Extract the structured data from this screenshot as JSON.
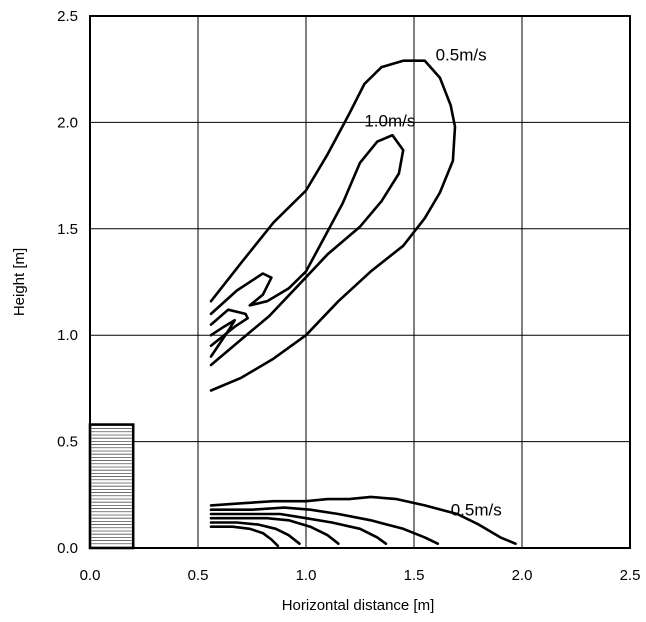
{
  "chart_data": {
    "type": "line",
    "title": "",
    "xlabel": "Horizontal distance [m]",
    "ylabel": "Height [m]",
    "xlim": [
      0.0,
      2.5
    ],
    "ylim": [
      0.0,
      2.5
    ],
    "xticks": [
      "0.0",
      "0.5",
      "1.0",
      "1.5",
      "2.0",
      "2.5"
    ],
    "yticks": [
      "0.0",
      "0.5",
      "1.0",
      "1.5",
      "2.0",
      "2.5"
    ],
    "xtick_values": [
      0,
      0.5,
      1.0,
      1.5,
      2.0,
      2.5
    ],
    "ytick_values": [
      0,
      0.5,
      1.0,
      1.5,
      2.0,
      2.5
    ],
    "grid": true,
    "legend": "none",
    "obstacle": {
      "x": [
        0.0,
        0.2
      ],
      "y": [
        0.0,
        0.58
      ]
    },
    "annotations": [
      {
        "text": "0.5m/s",
        "x": 1.6,
        "y": 2.32
      },
      {
        "text": "1.0m/s",
        "x": 1.27,
        "y": 2.01
      },
      {
        "text": "0.5m/s",
        "x": 1.67,
        "y": 0.18
      }
    ],
    "series": [
      {
        "points": [
          [
            0.56,
            1.16
          ],
          [
            0.7,
            1.34
          ],
          [
            0.85,
            1.53
          ],
          [
            1.0,
            1.68
          ],
          [
            1.1,
            1.85
          ],
          [
            1.2,
            2.04
          ],
          [
            1.27,
            2.18
          ],
          [
            1.35,
            2.26
          ],
          [
            1.45,
            2.29
          ],
          [
            1.55,
            2.29
          ],
          [
            1.62,
            2.21
          ],
          [
            1.67,
            2.08
          ],
          [
            1.69,
            1.98
          ],
          [
            1.68,
            1.82
          ],
          [
            1.62,
            1.67
          ],
          [
            1.55,
            1.55
          ],
          [
            1.45,
            1.42
          ],
          [
            1.3,
            1.3
          ],
          [
            1.15,
            1.16
          ],
          [
            1.0,
            1.0
          ],
          [
            0.85,
            0.89
          ],
          [
            0.7,
            0.8
          ],
          [
            0.56,
            0.74
          ]
        ]
      },
      {
        "points": [
          [
            0.56,
            1.1
          ],
          [
            0.68,
            1.21
          ],
          [
            0.8,
            1.29
          ],
          [
            0.84,
            1.27
          ],
          [
            0.8,
            1.19
          ],
          [
            0.74,
            1.14
          ],
          [
            0.82,
            1.16
          ],
          [
            0.92,
            1.22
          ],
          [
            1.0,
            1.3
          ],
          [
            1.08,
            1.45
          ],
          [
            1.17,
            1.62
          ],
          [
            1.25,
            1.81
          ],
          [
            1.33,
            1.91
          ],
          [
            1.4,
            1.94
          ],
          [
            1.45,
            1.87
          ],
          [
            1.43,
            1.76
          ],
          [
            1.35,
            1.63
          ],
          [
            1.25,
            1.51
          ],
          [
            1.1,
            1.38
          ],
          [
            0.96,
            1.23
          ],
          [
            0.83,
            1.09
          ],
          [
            0.7,
            0.98
          ],
          [
            0.56,
            0.86
          ]
        ]
      },
      {
        "points": [
          [
            0.56,
            1.05
          ],
          [
            0.64,
            1.12
          ],
          [
            0.72,
            1.1
          ],
          [
            0.73,
            1.08
          ],
          [
            0.67,
            1.04
          ],
          [
            0.56,
            0.95
          ]
        ]
      },
      {
        "points": [
          [
            0.56,
            1.0
          ],
          [
            0.62,
            1.04
          ],
          [
            0.67,
            1.07
          ],
          [
            0.64,
            1.02
          ],
          [
            0.56,
            0.9
          ]
        ]
      },
      {
        "points": [
          [
            0.56,
            0.2
          ],
          [
            0.7,
            0.21
          ],
          [
            0.85,
            0.22
          ],
          [
            1.0,
            0.22
          ],
          [
            1.1,
            0.23
          ],
          [
            1.2,
            0.23
          ],
          [
            1.3,
            0.24
          ],
          [
            1.42,
            0.23
          ],
          [
            1.55,
            0.2
          ],
          [
            1.7,
            0.16
          ],
          [
            1.8,
            0.11
          ],
          [
            1.9,
            0.05
          ],
          [
            1.97,
            0.02
          ]
        ]
      },
      {
        "points": [
          [
            0.56,
            0.18
          ],
          [
            0.75,
            0.18
          ],
          [
            0.9,
            0.19
          ],
          [
            1.02,
            0.18
          ],
          [
            1.15,
            0.16
          ],
          [
            1.3,
            0.13
          ],
          [
            1.45,
            0.09
          ],
          [
            1.55,
            0.05
          ],
          [
            1.61,
            0.02
          ]
        ]
      },
      {
        "points": [
          [
            0.56,
            0.16
          ],
          [
            0.72,
            0.16
          ],
          [
            0.88,
            0.16
          ],
          [
            1.0,
            0.14
          ],
          [
            1.12,
            0.12
          ],
          [
            1.25,
            0.09
          ],
          [
            1.33,
            0.05
          ],
          [
            1.37,
            0.02
          ]
        ]
      },
      {
        "points": [
          [
            0.56,
            0.14
          ],
          [
            0.7,
            0.14
          ],
          [
            0.82,
            0.14
          ],
          [
            0.92,
            0.13
          ],
          [
            1.02,
            0.1
          ],
          [
            1.1,
            0.06
          ],
          [
            1.15,
            0.02
          ]
        ]
      },
      {
        "points": [
          [
            0.56,
            0.12
          ],
          [
            0.68,
            0.12
          ],
          [
            0.78,
            0.11
          ],
          [
            0.86,
            0.09
          ],
          [
            0.92,
            0.06
          ],
          [
            0.97,
            0.02
          ]
        ]
      },
      {
        "points": [
          [
            0.56,
            0.1
          ],
          [
            0.66,
            0.1
          ],
          [
            0.74,
            0.09
          ],
          [
            0.8,
            0.07
          ],
          [
            0.84,
            0.04
          ],
          [
            0.87,
            0.01
          ]
        ]
      }
    ]
  }
}
